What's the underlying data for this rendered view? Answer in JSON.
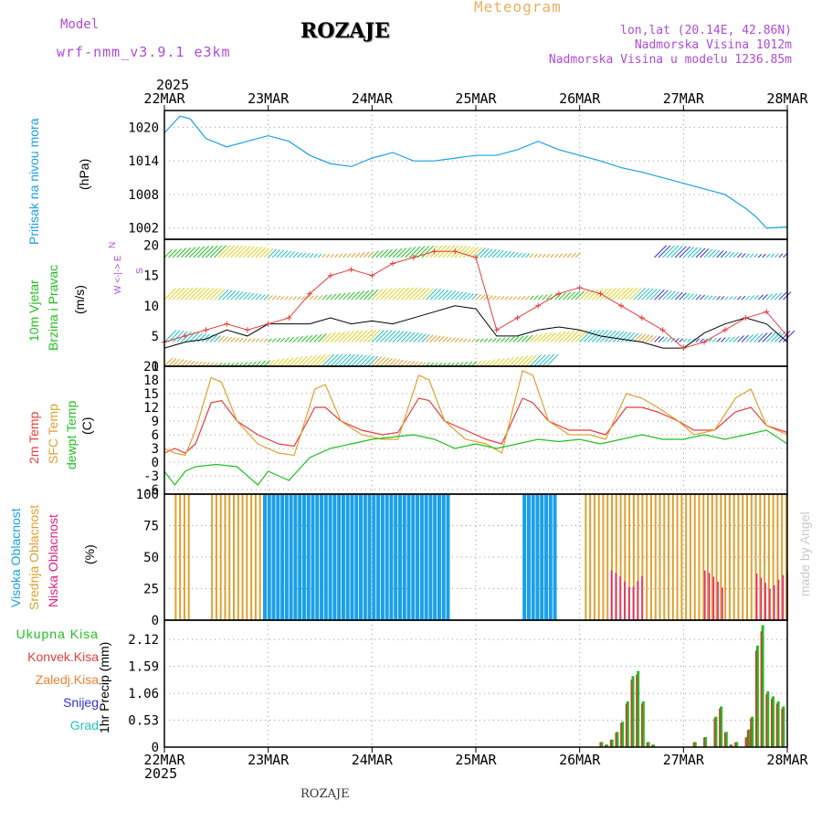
{
  "header": {
    "model_label": "Model",
    "model_name": "wrf-nmm_v3.9.1 e3km",
    "station": "ROZAJE",
    "title": "Meteogram",
    "coords": "lon,lat (20.14E, 42.86N)",
    "altitude": "Nadmorska Visina 1012m",
    "model_altitude": "Nadmorska Visina u modelu 1236.85m",
    "year_top": "2025",
    "year_bottom": "2025",
    "footer_station": "ROZAJE",
    "watermark": "made by Angel"
  },
  "colors": {
    "pressure": "#1aa0e8",
    "t2m": "#e83c3c",
    "tsfc": "#e0a030",
    "dewpt": "#20c020",
    "high_cloud": "#1aa0e8",
    "mid_cloud": "#e0a030",
    "low_cloud": "#e02080",
    "total_precip": "#20c020",
    "conv_precip": "#e83c3c",
    "frozen_precip": "#f08030",
    "snow": "#3030e0",
    "graupel": "#20c0c0",
    "wind_black": "#000000",
    "wind_red": "#e83c3c"
  },
  "chart_data": [
    {
      "type": "line",
      "panel": "pressure",
      "ylabel_lines": [
        "Pritisak na nivou mora",
        "(hPa)"
      ],
      "x_labels": [
        "22MAR",
        "23MAR",
        "24MAR",
        "25MAR",
        "26MAR",
        "27MAR",
        "28MAR"
      ],
      "ylim": [
        1000,
        1023
      ],
      "yticks": [
        1002,
        1008,
        1014,
        1020
      ],
      "series": [
        {
          "name": "MSLP",
          "x": [
            0,
            0.1,
            0.15,
            0.25,
            0.4,
            0.6,
            0.8,
            1.0,
            1.2,
            1.4,
            1.6,
            1.8,
            2.0,
            2.2,
            2.4,
            2.6,
            2.8,
            3.0,
            3.2,
            3.4,
            3.6,
            3.8,
            4.0,
            4.2,
            4.4,
            4.6,
            4.8,
            5.0,
            5.2,
            5.4,
            5.6,
            5.7,
            5.8,
            6.0
          ],
          "values": [
            1019,
            1021,
            1022,
            1021.5,
            1018,
            1016.5,
            1017.5,
            1018.5,
            1017.5,
            1015,
            1013.5,
            1013,
            1014.5,
            1015.5,
            1014,
            1014,
            1014.5,
            1015,
            1015,
            1016,
            1017.5,
            1016,
            1015,
            1014,
            1012.8,
            1012,
            1011,
            1010,
            1009,
            1008,
            1005.5,
            1004,
            1002,
            1002.2
          ]
        }
      ]
    },
    {
      "type": "line",
      "panel": "wind",
      "ylabel_lines": [
        "10m Vjetar",
        "Brzina i Pravac",
        "(m/s)"
      ],
      "compass_lines": [
        "N",
        "W <-|-> E",
        "S"
      ],
      "ylim": [
        0,
        21
      ],
      "yticks": [
        0,
        5,
        10,
        15,
        20
      ],
      "series": [
        {
          "name": "Brzina (mean)",
          "x": [
            0,
            0.2,
            0.4,
            0.6,
            0.8,
            1.0,
            1.2,
            1.4,
            1.6,
            1.8,
            2.0,
            2.2,
            2.4,
            2.6,
            2.8,
            3.0,
            3.2,
            3.4,
            3.6,
            3.8,
            4.0,
            4.2,
            4.4,
            4.6,
            4.8,
            5.0,
            5.2,
            5.4,
            5.6,
            5.8,
            6.0
          ],
          "values": [
            3,
            4,
            4.5,
            6,
            5,
            7,
            7,
            7,
            8,
            7,
            7.5,
            7,
            8,
            9,
            10,
            9.5,
            5,
            5,
            6,
            6.5,
            6,
            5,
            4.5,
            4,
            3,
            3,
            5.5,
            7,
            8,
            7,
            4
          ]
        },
        {
          "name": "Udari",
          "x": [
            0,
            0.2,
            0.4,
            0.6,
            0.8,
            1.0,
            1.2,
            1.4,
            1.6,
            1.8,
            2.0,
            2.2,
            2.4,
            2.6,
            2.8,
            3.0,
            3.2,
            3.4,
            3.6,
            3.8,
            4.0,
            4.2,
            4.4,
            4.6,
            4.8,
            5.0,
            5.2,
            5.4,
            5.6,
            5.8,
            6.0
          ],
          "values": [
            4,
            5,
            6,
            7,
            6,
            7,
            8,
            12,
            15,
            16,
            15,
            17,
            18,
            19,
            19,
            18,
            6,
            8,
            10,
            12,
            13,
            12,
            10,
            8,
            6,
            3,
            4,
            6,
            8,
            9,
            5
          ]
        }
      ]
    },
    {
      "type": "line",
      "panel": "temperature",
      "ylabel_lines": [
        "2m Temp",
        "SFC Temp",
        "dewpt Temp",
        "(C)"
      ],
      "ylim": [
        -7,
        21
      ],
      "yticks": [
        -6,
        -3,
        0,
        3,
        6,
        9,
        12,
        15,
        18,
        21
      ],
      "series": [
        {
          "name": "2m Temp",
          "x": [
            0,
            0.1,
            0.2,
            0.3,
            0.45,
            0.55,
            0.7,
            0.9,
            1.1,
            1.25,
            1.45,
            1.55,
            1.7,
            1.9,
            2.1,
            2.25,
            2.45,
            2.55,
            2.7,
            2.9,
            3.1,
            3.25,
            3.45,
            3.55,
            3.7,
            3.9,
            4.1,
            4.25,
            4.45,
            4.6,
            4.75,
            4.95,
            5.1,
            5.3,
            5.5,
            5.65,
            5.8,
            6.0
          ],
          "values": [
            2,
            3,
            2,
            4,
            13,
            13.5,
            9,
            6,
            4,
            3.5,
            12,
            12,
            9,
            7,
            6,
            6.5,
            14,
            13.5,
            9,
            7,
            5,
            4,
            14,
            13,
            9,
            7,
            7,
            6,
            12,
            12,
            11,
            9,
            7,
            7,
            11,
            12,
            8,
            6.5
          ]
        },
        {
          "name": "SFC Temp",
          "x": [
            0,
            0.1,
            0.2,
            0.3,
            0.45,
            0.55,
            0.7,
            0.9,
            1.1,
            1.25,
            1.45,
            1.55,
            1.7,
            1.9,
            2.1,
            2.25,
            2.45,
            2.55,
            2.7,
            2.9,
            3.1,
            3.25,
            3.45,
            3.55,
            3.7,
            3.9,
            4.1,
            4.25,
            4.45,
            4.6,
            4.75,
            4.95,
            5.1,
            5.3,
            5.5,
            5.65,
            5.8,
            6.0
          ],
          "values": [
            3,
            2,
            1.5,
            7,
            18.5,
            17.5,
            9,
            4,
            2,
            1.5,
            16,
            17,
            9,
            6,
            5,
            5,
            19,
            18,
            9,
            5,
            4,
            2,
            20,
            19,
            9,
            6,
            6,
            5,
            15,
            14,
            12,
            9,
            6,
            7,
            14,
            16,
            8,
            6
          ]
        },
        {
          "name": "dewpt Temp",
          "x": [
            0,
            0.1,
            0.2,
            0.3,
            0.5,
            0.7,
            0.9,
            1.0,
            1.1,
            1.2,
            1.4,
            1.6,
            1.8,
            2.0,
            2.2,
            2.4,
            2.6,
            2.8,
            3.0,
            3.2,
            3.4,
            3.6,
            3.8,
            4.0,
            4.2,
            4.4,
            4.6,
            4.8,
            5.0,
            5.2,
            5.4,
            5.6,
            5.8,
            6.0
          ],
          "values": [
            -2,
            -5,
            -2,
            -1,
            -0.5,
            -1,
            -5,
            -2,
            -3,
            -4,
            1,
            3,
            4,
            5,
            5.5,
            6,
            5,
            3,
            4,
            3,
            4,
            5,
            4.5,
            5,
            4,
            5,
            6,
            5,
            5,
            6,
            5,
            6,
            7,
            4
          ]
        }
      ]
    },
    {
      "type": "bar",
      "panel": "clouds",
      "ylabel_lines": [
        "Visoka Oblacnost",
        "Srednja Oblacnost",
        "Niska Oblacnost",
        "(%)"
      ],
      "ylim": [
        0,
        100
      ],
      "yticks": [
        0,
        25,
        50,
        75,
        100
      ],
      "series": [
        {
          "name": "Visoka Oblacnost",
          "ranges": [
            [
              0.95,
              2.75
            ],
            [
              3.45,
              3.75
            ]
          ],
          "value": 100
        },
        {
          "name": "Srednja Oblacnost",
          "ranges": [
            [
              0.1,
              0.25
            ],
            [
              0.45,
              0.95
            ],
            [
              4.05,
              6.0
            ]
          ],
          "value": 100
        },
        {
          "name": "Niska Oblacnost",
          "ranges": [
            [
              4.3,
              4.6
            ],
            [
              5.2,
              5.4
            ],
            [
              5.7,
              6.0
            ]
          ],
          "value": 40
        }
      ]
    },
    {
      "type": "bar",
      "panel": "precip",
      "ylabel_lines": [
        "1hr Precip (mm)"
      ],
      "legend": [
        "Ukupna Kisa",
        "Konvek.Kisa",
        "Zaledj.Kisa",
        "Snijeg",
        "Grad"
      ],
      "ylim": [
        0,
        2.5
      ],
      "yticks": [
        0,
        0.53,
        1.06,
        1.59,
        2.12
      ],
      "ytick_labels": [
        "0",
        "0.53",
        "1.06",
        "1.59",
        "2.12"
      ],
      "x_labels": [
        "22MAR",
        "23MAR",
        "24MAR",
        "25MAR",
        "26MAR",
        "27MAR",
        "28MAR"
      ],
      "series": [
        {
          "name": "Ukupna Kisa",
          "x": [
            4.2,
            4.25,
            4.3,
            4.35,
            4.4,
            4.45,
            4.5,
            4.55,
            4.6,
            4.65,
            4.7,
            5.1,
            5.2,
            5.3,
            5.35,
            5.4,
            5.45,
            5.5,
            5.6,
            5.62,
            5.65,
            5.7,
            5.75,
            5.8,
            5.85,
            5.9,
            5.95
          ],
          "values": [
            0.1,
            0.05,
            0.15,
            0.3,
            0.5,
            0.9,
            1.4,
            1.5,
            0.9,
            0.1,
            0.05,
            0.1,
            0.2,
            0.6,
            0.8,
            0.3,
            0.05,
            0.1,
            0.2,
            0.35,
            0.6,
            2.0,
            2.4,
            1.1,
            1.0,
            0.9,
            0.8
          ]
        }
      ]
    }
  ]
}
